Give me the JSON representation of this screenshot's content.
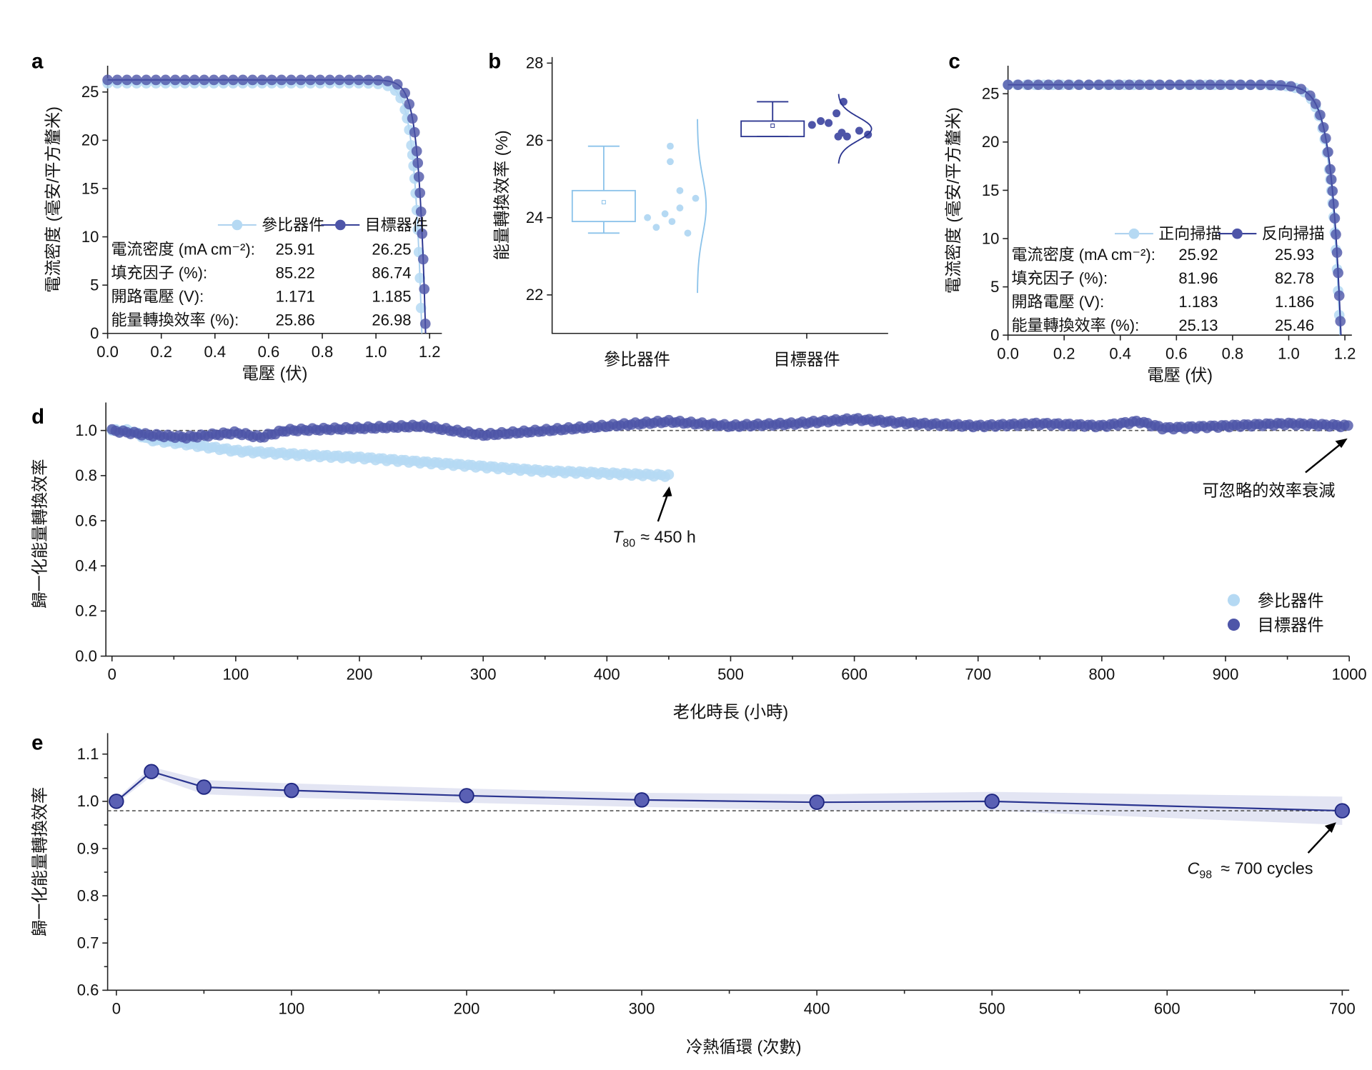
{
  "panels": {
    "a": "a",
    "b": "b",
    "c": "c",
    "d": "d",
    "e": "e"
  },
  "colors": {
    "ref": "#b5d9f3",
    "target": "#4e55a8",
    "targetLine": "#2b3590",
    "band": "#dcdff0"
  },
  "chart_data": [
    {
      "id": "a",
      "type": "line",
      "xlabel": "電壓 (伏)",
      "ylabel": "電流密度 (毫安/平方釐米)",
      "xlim": [
        0,
        1.2
      ],
      "ylim": [
        0,
        27
      ],
      "xticks": [
        "0.0",
        "0.2",
        "0.4",
        "0.6",
        "0.8",
        "1.0",
        "1.2"
      ],
      "yticks": [
        "0",
        "5",
        "10",
        "15",
        "20",
        "25"
      ],
      "legend": [
        "參比器件",
        "目標器件"
      ],
      "series": [
        {
          "name": "參比器件",
          "jsc": 25.91,
          "voc": 1.171,
          "ff": 85.22,
          "pce": 25.86
        },
        {
          "name": "目標器件",
          "jsc": 26.25,
          "voc": 1.185,
          "ff": 86.74,
          "pce": 26.98
        }
      ],
      "table": {
        "rows": [
          [
            "電流密度 (mA cm⁻²):",
            "25.91",
            "26.25"
          ],
          [
            "填充因子 (%):",
            "85.22",
            "86.74"
          ],
          [
            "開路電壓 (V):",
            "1.171",
            "1.185"
          ],
          [
            "能量轉換效率 (%):",
            "25.86",
            "26.98"
          ]
        ]
      }
    },
    {
      "id": "b",
      "type": "box",
      "ylabel": "能量轉換效率 (%)",
      "ylim": [
        21,
        28
      ],
      "yticks": [
        "22",
        "24",
        "26",
        "28"
      ],
      "categories": [
        "參比器件",
        "目標器件"
      ],
      "boxes": [
        {
          "min": 23.6,
          "q1": 23.9,
          "q3": 24.7,
          "max": 25.85,
          "mean": 24.4,
          "points": [
            24.0,
            23.75,
            24.1,
            23.9,
            24.7,
            25.45,
            25.85,
            24.25,
            23.6,
            24.5
          ]
        },
        {
          "min": 26.1,
          "q1": 26.1,
          "q3": 26.5,
          "max": 27.0,
          "mean": 26.38,
          "points": [
            26.4,
            26.5,
            26.45,
            26.7,
            26.2,
            26.1,
            26.1,
            27.0,
            26.25,
            26.15
          ]
        }
      ]
    },
    {
      "id": "c",
      "type": "line",
      "xlabel": "電壓 (伏)",
      "ylabel": "電流密度 (毫安/平方釐米)",
      "xlim": [
        0,
        1.2
      ],
      "ylim": [
        0,
        27
      ],
      "xticks": [
        "0.0",
        "0.2",
        "0.4",
        "0.6",
        "0.8",
        "1.0",
        "1.2"
      ],
      "yticks": [
        "0",
        "5",
        "10",
        "15",
        "20",
        "25"
      ],
      "legend": [
        "正向掃描",
        "反向掃描"
      ],
      "series": [
        {
          "name": "正向掃描",
          "jsc": 25.92,
          "voc": 1.183,
          "ff": 81.96,
          "pce": 25.13
        },
        {
          "name": "反向掃描",
          "jsc": 25.93,
          "voc": 1.186,
          "ff": 82.78,
          "pce": 25.46
        }
      ],
      "table": {
        "rows": [
          [
            "電流密度 (mA cm⁻²):",
            "25.92",
            "25.93"
          ],
          [
            "填充因子 (%):",
            "81.96",
            "82.78"
          ],
          [
            "開路電壓 (V):",
            "1.183",
            "1.186"
          ],
          [
            "能量轉換效率 (%):",
            "25.13",
            "25.46"
          ]
        ]
      }
    },
    {
      "id": "d",
      "type": "scatter",
      "xlabel": "老化時長 (小時)",
      "ylabel": "歸一化能量轉換效率",
      "xlim": [
        0,
        1000
      ],
      "ylim": [
        0,
        1.1
      ],
      "xticks": [
        "0",
        "100",
        "200",
        "300",
        "400",
        "500",
        "600",
        "700",
        "800",
        "900",
        "1000"
      ],
      "yticks": [
        "0.0",
        "0.2",
        "0.4",
        "0.6",
        "0.8",
        "1.0"
      ],
      "reference_line": 1.0,
      "legend": [
        "參比器件",
        "目標器件"
      ],
      "series": [
        {
          "name": "參比器件",
          "x": [
            0,
            15,
            30,
            60,
            100,
            130,
            160,
            200,
            250,
            300,
            350,
            400,
            450
          ],
          "y": [
            1.0,
            1.0,
            0.96,
            0.94,
            0.91,
            0.9,
            0.89,
            0.88,
            0.86,
            0.84,
            0.82,
            0.81,
            0.8
          ]
        },
        {
          "name": "目標器件",
          "x": [
            0,
            30,
            60,
            100,
            120,
            140,
            200,
            250,
            300,
            350,
            400,
            450,
            500,
            550,
            600,
            650,
            700,
            750,
            800,
            830,
            850,
            900,
            950,
            1000
          ],
          "y": [
            1.0,
            0.98,
            0.97,
            0.99,
            0.97,
            1.0,
            1.01,
            1.02,
            0.98,
            1.0,
            1.02,
            1.04,
            1.02,
            1.03,
            1.05,
            1.03,
            1.02,
            1.03,
            1.02,
            1.04,
            1.01,
            1.02,
            1.03,
            1.02
          ]
        }
      ],
      "annotations": {
        "t80_symbol": "T",
        "t80_sub": "80",
        "t80_text": "≈ 450 h",
        "negligible": "可忽略的效率衰減"
      }
    },
    {
      "id": "e",
      "type": "line",
      "xlabel": "冷熱循環 (次數)",
      "ylabel": "歸一化能量轉換效率",
      "xlim": [
        0,
        700
      ],
      "ylim": [
        0.6,
        1.15
      ],
      "xticks": [
        "0",
        "100",
        "200",
        "300",
        "400",
        "500",
        "600",
        "700"
      ],
      "yticks": [
        "0.6",
        "0.7",
        "0.8",
        "0.9",
        "1.0",
        "1.1"
      ],
      "reference_line": 0.98,
      "series": [
        {
          "name": "目標器件",
          "x": [
            0,
            20,
            50,
            100,
            200,
            300,
            400,
            500,
            700
          ],
          "y": [
            1.0,
            1.063,
            1.03,
            1.023,
            1.012,
            1.003,
            0.998,
            1.0,
            0.98
          ],
          "err": [
            0.005,
            0.01,
            0.015,
            0.015,
            0.015,
            0.015,
            0.017,
            0.02,
            0.03
          ]
        }
      ],
      "annotations": {
        "c98_symbol": "C",
        "c98_sub": "98",
        "c98_text": "≈ 700 cycles"
      }
    }
  ]
}
